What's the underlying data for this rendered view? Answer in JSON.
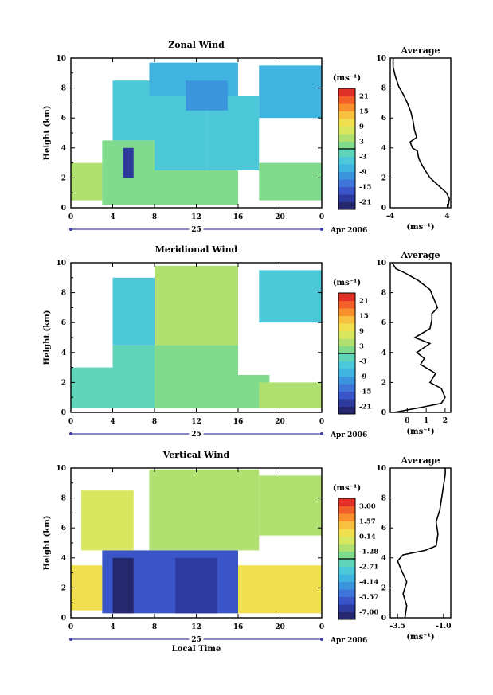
{
  "xaxis": {
    "ticks": [
      "0",
      "4",
      "8",
      "12",
      "16",
      "20",
      "0"
    ],
    "day_label": "25",
    "date_label": "Apr 2006",
    "xlabel": "Local Time"
  },
  "yaxis": {
    "label": "Height (km)",
    "ticks": [
      "0",
      "2",
      "4",
      "6",
      "8",
      "10"
    ]
  },
  "units": "(ms⁻¹)",
  "avg_title": "Average",
  "colorbar_colors": [
    "#26286e",
    "#2d3a9e",
    "#3a55c8",
    "#3f75d8",
    "#3a95dc",
    "#40b3e0",
    "#4cc8d8",
    "#5fd4b8",
    "#80dc8c",
    "#b0e070",
    "#d8e660",
    "#f0e050",
    "#f8c040",
    "#f89030",
    "#f06028",
    "#e03028"
  ],
  "chart_data": [
    {
      "type": "heatmap",
      "title": "Zonal Wind",
      "xlabel": "Local Time",
      "ylabel": "Height (km)",
      "xlim": [
        0,
        24
      ],
      "ylim": [
        0,
        10
      ],
      "colorbar": {
        "units": "(ms⁻¹)",
        "ticks": [
          "21",
          "15",
          "9",
          "3",
          "-3",
          "-9",
          "-15",
          "-21"
        ],
        "range": [
          -24,
          24
        ]
      },
      "profile": {
        "title": "Average",
        "xlabel": "(ms⁻¹)",
        "xticks": [
          "-4",
          "4"
        ],
        "xlim": [
          -4,
          4.5
        ],
        "points": [
          [
            4.1,
            0
          ],
          [
            4.2,
            0.3
          ],
          [
            4.3,
            0.6
          ],
          [
            3.9,
            1.0
          ],
          [
            2.5,
            1.6
          ],
          [
            1.6,
            2.0
          ],
          [
            0.9,
            2.5
          ],
          [
            0.3,
            3.0
          ],
          [
            0.0,
            3.3
          ],
          [
            -0.2,
            3.8
          ],
          [
            -0.9,
            4.0
          ],
          [
            -1.2,
            4.4
          ],
          [
            -0.3,
            4.7
          ],
          [
            -0.6,
            5.2
          ],
          [
            -0.8,
            5.8
          ],
          [
            -1.1,
            6.4
          ],
          [
            -1.6,
            7.0
          ],
          [
            -2.2,
            7.6
          ],
          [
            -2.8,
            8.1
          ],
          [
            -3.3,
            8.8
          ],
          [
            -3.6,
            9.4
          ],
          [
            -3.6,
            10.0
          ]
        ]
      },
      "regions": [
        {
          "t0": 0,
          "t1": 3,
          "h0": 0.5,
          "h1": 3.0,
          "v": 3
        },
        {
          "t0": 3,
          "t1": 8,
          "h0": 0.2,
          "h1": 2.5,
          "v": 2
        },
        {
          "t0": 8,
          "t1": 16,
          "h0": 0.2,
          "h1": 2.5,
          "v": 1
        },
        {
          "t0": 3,
          "t1": 8,
          "h0": 2.5,
          "h1": 4.5,
          "v": 0
        },
        {
          "t0": 5,
          "t1": 6,
          "h0": 2.0,
          "h1": 4.0,
          "v": -20
        },
        {
          "t0": 4,
          "t1": 8,
          "h0": 4.5,
          "h1": 8.5,
          "v": -4
        },
        {
          "t0": 8,
          "t1": 13,
          "h0": 2.5,
          "h1": 7.5,
          "v": -5
        },
        {
          "t0": 13,
          "t1": 18,
          "h0": 2.5,
          "h1": 7.5,
          "v": -6
        },
        {
          "t0": 7.5,
          "t1": 16,
          "h0": 7.5,
          "h1": 9.7,
          "v": -9
        },
        {
          "t0": 11,
          "t1": 15,
          "h0": 6.5,
          "h1": 8.5,
          "v": -10
        },
        {
          "t0": 18,
          "t1": 24,
          "h0": 0.5,
          "h1": 3.0,
          "v": 0
        },
        {
          "t0": 18,
          "t1": 24,
          "h0": 6.0,
          "h1": 9.5,
          "v": -8
        }
      ]
    },
    {
      "type": "heatmap",
      "title": "Meridional Wind",
      "xlabel": "Local Time",
      "ylabel": "Height (km)",
      "xlim": [
        0,
        24
      ],
      "ylim": [
        0,
        10
      ],
      "colorbar": {
        "units": "(ms⁻¹)",
        "ticks": [
          "21",
          "15",
          "9",
          "3",
          "-3",
          "-9",
          "-15",
          "-21"
        ],
        "range": [
          -24,
          24
        ]
      },
      "profile": {
        "title": "Average",
        "xlabel": "(ms⁻¹)",
        "xticks": [
          "0",
          "1",
          "2"
        ],
        "xlim": [
          -0.9,
          2.3
        ],
        "points": [
          [
            -0.7,
            0
          ],
          [
            0.6,
            0.3
          ],
          [
            1.8,
            0.6
          ],
          [
            2.0,
            1.0
          ],
          [
            1.8,
            1.6
          ],
          [
            1.2,
            2.0
          ],
          [
            1.5,
            2.6
          ],
          [
            0.7,
            3.2
          ],
          [
            0.9,
            3.6
          ],
          [
            0.5,
            4.0
          ],
          [
            1.2,
            4.6
          ],
          [
            0.4,
            5.0
          ],
          [
            1.2,
            5.6
          ],
          [
            1.3,
            6.2
          ],
          [
            1.3,
            6.6
          ],
          [
            1.6,
            7.0
          ],
          [
            1.4,
            7.6
          ],
          [
            1.2,
            8.2
          ],
          [
            0.6,
            8.8
          ],
          [
            -0.1,
            9.3
          ],
          [
            -0.6,
            9.6
          ],
          [
            -0.8,
            10.0
          ]
        ]
      },
      "regions": [
        {
          "t0": 0,
          "t1": 4,
          "h0": 0.3,
          "h1": 3.0,
          "v": -1
        },
        {
          "t0": 4,
          "t1": 8,
          "h0": 0.3,
          "h1": 4.5,
          "v": -3
        },
        {
          "t0": 8,
          "t1": 16,
          "h0": 0.3,
          "h1": 4.5,
          "v": 1
        },
        {
          "t0": 4,
          "t1": 8,
          "h0": 4.5,
          "h1": 9.0,
          "v": -4
        },
        {
          "t0": 8,
          "t1": 16,
          "h0": 4.5,
          "h1": 9.8,
          "v": 4
        },
        {
          "t0": 16,
          "t1": 19,
          "h0": 0.3,
          "h1": 2.5,
          "v": 2
        },
        {
          "t0": 18,
          "t1": 24,
          "h0": 0.3,
          "h1": 2.0,
          "v": 4
        },
        {
          "t0": 18,
          "t1": 24,
          "h0": 6.0,
          "h1": 9.5,
          "v": -4
        }
      ]
    },
    {
      "type": "heatmap",
      "title": "Vertical Wind",
      "xlabel": "Local Time",
      "ylabel": "Height (km)",
      "xlim": [
        0,
        24
      ],
      "ylim": [
        0,
        10
      ],
      "colorbar": {
        "units": "(ms⁻¹)",
        "ticks": [
          "3.00",
          "1.57",
          "0.14",
          "-1.28",
          "-2.71",
          "-4.14",
          "-5.57",
          "-7.00"
        ],
        "range": [
          -7.7,
          3.7
        ]
      },
      "profile": {
        "title": "Average",
        "xlabel": "(ms⁻¹)",
        "xticks": [
          "-3.5",
          "-1.0"
        ],
        "xlim": [
          -3.9,
          -0.6
        ],
        "points": [
          [
            -3.1,
            0
          ],
          [
            -3.0,
            0.8
          ],
          [
            -3.2,
            1.6
          ],
          [
            -3.0,
            2.4
          ],
          [
            -3.3,
            3.2
          ],
          [
            -3.5,
            3.8
          ],
          [
            -3.2,
            4.2
          ],
          [
            -2.0,
            4.5
          ],
          [
            -1.4,
            4.8
          ],
          [
            -1.3,
            5.6
          ],
          [
            -1.4,
            6.4
          ],
          [
            -1.2,
            7.2
          ],
          [
            -1.1,
            8.0
          ],
          [
            -1.0,
            8.8
          ],
          [
            -0.9,
            9.6
          ],
          [
            -0.9,
            10.0
          ]
        ]
      },
      "regions": [
        {
          "t0": 0,
          "t1": 3,
          "h0": 0.5,
          "h1": 3.5,
          "v": 0.6
        },
        {
          "t0": 3,
          "t1": 16,
          "h0": 0.3,
          "h1": 4.5,
          "v": -5.8
        },
        {
          "t0": 4,
          "t1": 6,
          "h0": 0.3,
          "h1": 4.0,
          "v": -7.0
        },
        {
          "t0": 10,
          "t1": 14,
          "h0": 0.3,
          "h1": 4.0,
          "v": -6.9
        },
        {
          "t0": 1,
          "t1": 6,
          "h0": 4.5,
          "h1": 8.5,
          "v": -0.3
        },
        {
          "t0": 7.5,
          "t1": 18,
          "h0": 4.5,
          "h1": 9.9,
          "v": -0.9
        },
        {
          "t0": 16,
          "t1": 24,
          "h0": 0.3,
          "h1": 3.5,
          "v": 0.8
        },
        {
          "t0": 18,
          "t1": 24,
          "h0": 5.5,
          "h1": 9.5,
          "v": -0.6
        }
      ]
    }
  ]
}
